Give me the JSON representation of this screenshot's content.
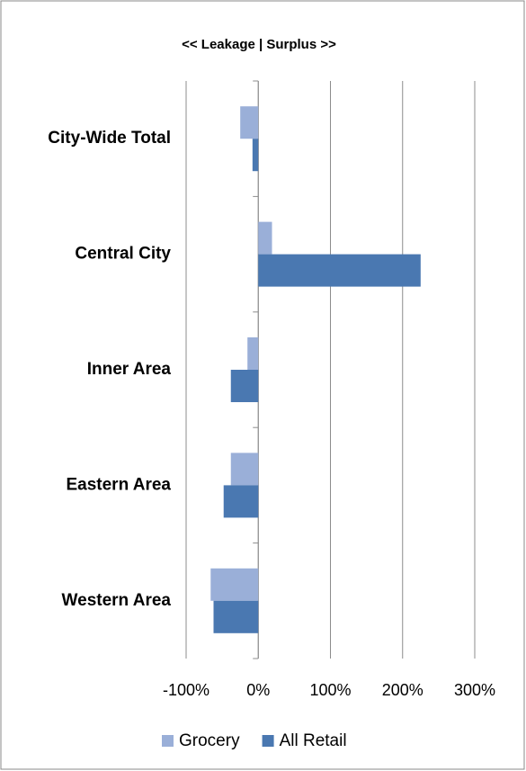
{
  "chart_data": {
    "type": "hbar",
    "title": "<<  Leakage |  Surplus >>",
    "categories": [
      "City-Wide Total",
      "Central City",
      "Inner Area",
      "Eastern Area",
      "Western Area"
    ],
    "series": [
      {
        "name": "Grocery",
        "color": "#9aafd8",
        "values": [
          -25,
          19,
          -15,
          -38,
          -66
        ]
      },
      {
        "name": "All Retail",
        "color": "#4a78b1",
        "values": [
          -8,
          225,
          -38,
          -48,
          -62
        ]
      }
    ],
    "xlim": [
      -100,
      300
    ],
    "xticks": [
      {
        "value": -100,
        "label": "-100%"
      },
      {
        "value": 0,
        "label": "0%"
      },
      {
        "value": 100,
        "label": "100%"
      },
      {
        "value": 200,
        "label": "200%"
      },
      {
        "value": 300,
        "label": "300%"
      }
    ],
    "grid": true,
    "legend": "bottom"
  }
}
